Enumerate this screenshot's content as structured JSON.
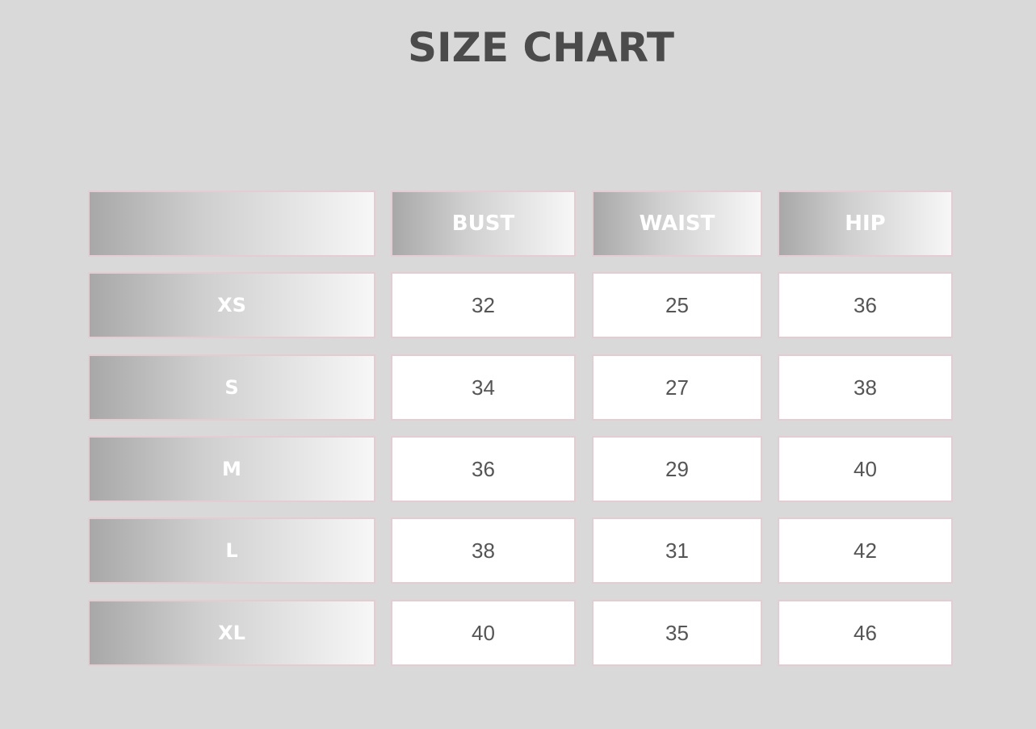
{
  "title": "SIZE CHART",
  "columns": [
    "",
    "BUST",
    "WAIST",
    "HIP"
  ],
  "rows": [
    {
      "size": "XS",
      "values": [
        "32",
        "25",
        "36"
      ]
    },
    {
      "size": "S",
      "values": [
        "34",
        "27",
        "38"
      ]
    },
    {
      "size": "M",
      "values": [
        "36",
        "29",
        "40"
      ]
    },
    {
      "size": "L",
      "values": [
        "38",
        "31",
        "42"
      ]
    },
    {
      "size": "XL",
      "values": [
        "40",
        "35",
        "46"
      ]
    }
  ],
  "colors": {
    "background": "#d9d9d9",
    "title": "#4b4b4b",
    "cell_border": "#e4cdd2"
  }
}
